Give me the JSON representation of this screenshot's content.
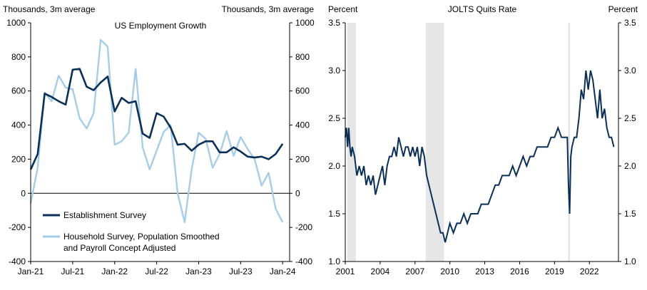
{
  "chart_data": [
    {
      "type": "line",
      "title": "US Employment Growth",
      "ylabel_left": "Thousands, 3m average",
      "ylabel_right": "Thousands, 3m average",
      "ylim": [
        -400,
        1000
      ],
      "yticks": [
        -400,
        -200,
        0,
        200,
        400,
        600,
        800,
        1000
      ],
      "yticklabels": [
        "-400",
        "-200",
        "0",
        "200",
        "400",
        "600",
        "800",
        "1000"
      ],
      "xlim": [
        0,
        37
      ],
      "xticks": [
        0,
        6,
        12,
        18,
        24,
        30,
        36
      ],
      "xticklabels": [
        "Jan-21",
        "Jul-21",
        "Jan-22",
        "Jul-22",
        "Jan-23",
        "Jul-23",
        "Jan-24"
      ],
      "zero_line": true,
      "legend_position": "bottom-left",
      "series": [
        {
          "name": "Establishment Survey",
          "color": "#0b2f57",
          "values": [
            140,
            230,
            585,
            565,
            540,
            520,
            725,
            730,
            625,
            605,
            650,
            685,
            480,
            560,
            530,
            540,
            350,
            325,
            470,
            450,
            385,
            285,
            290,
            250,
            285,
            305,
            305,
            240,
            240,
            270,
            245,
            215,
            210,
            215,
            200,
            230,
            290
          ]
        },
        {
          "name": "Household Survey, Population Smoothed\nand Payroll Concept Adjusted",
          "name_lines": [
            "Household Survey, Population Smoothed",
            "and Payroll Concept Adjusted"
          ],
          "color": "#a6cde8",
          "values": [
            -60,
            150,
            590,
            540,
            690,
            620,
            610,
            440,
            380,
            470,
            900,
            860,
            285,
            305,
            355,
            730,
            270,
            140,
            250,
            360,
            400,
            0,
            -170,
            140,
            355,
            320,
            150,
            230,
            365,
            220,
            330,
            260,
            200,
            45,
            120,
            -90,
            -170
          ]
        }
      ]
    },
    {
      "type": "line",
      "title": "JOLTS Quits Rate",
      "ylabel_left": "Percent",
      "ylabel_right": "Percent",
      "ylim": [
        1.0,
        3.5
      ],
      "yticks": [
        1.0,
        1.5,
        2.0,
        2.5,
        3.0,
        3.5
      ],
      "yticklabels": [
        "1.0",
        "1.5",
        "2.0",
        "2.5",
        "3.0",
        "3.5"
      ],
      "xlim": [
        2001.0,
        2024.5
      ],
      "xticks": [
        2001,
        2004,
        2007,
        2010,
        2013,
        2016,
        2019,
        2022
      ],
      "xticklabels": [
        "2001",
        "2004",
        "2007",
        "2010",
        "2013",
        "2016",
        "2019",
        "2022"
      ],
      "recessions": [
        [
          2001.17,
          2001.92
        ],
        [
          2007.92,
          2009.5
        ],
        [
          2020.17,
          2020.33
        ]
      ],
      "series": [
        {
          "name": "Quits Rate",
          "color": "#0b2f57",
          "x": [
            2001.0,
            2001.1,
            2001.2,
            2001.3,
            2001.4,
            2001.5,
            2001.6,
            2001.8,
            2002.0,
            2002.2,
            2002.4,
            2002.6,
            2002.8,
            2003.0,
            2003.2,
            2003.4,
            2003.6,
            2003.8,
            2004.0,
            2004.2,
            2004.4,
            2004.6,
            2004.8,
            2005.0,
            2005.2,
            2005.4,
            2005.6,
            2005.8,
            2006.0,
            2006.2,
            2006.4,
            2006.6,
            2006.8,
            2007.0,
            2007.2,
            2007.4,
            2007.6,
            2007.8,
            2008.0,
            2008.2,
            2008.4,
            2008.6,
            2008.8,
            2009.0,
            2009.2,
            2009.4,
            2009.6,
            2009.8,
            2010.0,
            2010.3,
            2010.6,
            2010.9,
            2011.2,
            2011.5,
            2011.8,
            2012.1,
            2012.4,
            2012.7,
            2013.0,
            2013.3,
            2013.6,
            2013.9,
            2014.2,
            2014.5,
            2014.8,
            2015.1,
            2015.4,
            2015.7,
            2016.0,
            2016.3,
            2016.6,
            2016.9,
            2017.2,
            2017.5,
            2017.8,
            2018.1,
            2018.4,
            2018.7,
            2019.0,
            2019.3,
            2019.6,
            2019.9,
            2020.1,
            2020.2,
            2020.3,
            2020.4,
            2020.5,
            2020.7,
            2020.9,
            2021.1,
            2021.3,
            2021.5,
            2021.7,
            2021.9,
            2022.1,
            2022.3,
            2022.5,
            2022.7,
            2022.9,
            2023.1,
            2023.3,
            2023.5,
            2023.7,
            2023.9,
            2024.1
          ],
          "values": [
            2.3,
            2.4,
            2.2,
            2.4,
            2.2,
            2.1,
            2.2,
            2.1,
            1.9,
            2.0,
            1.9,
            2.0,
            1.8,
            1.9,
            1.8,
            1.9,
            1.7,
            1.8,
            1.9,
            2.0,
            1.8,
            2.0,
            2.1,
            2.1,
            2.2,
            2.1,
            2.3,
            2.2,
            2.1,
            2.2,
            2.2,
            2.1,
            2.2,
            2.1,
            2.2,
            2.0,
            2.2,
            2.1,
            1.9,
            1.8,
            1.7,
            1.6,
            1.5,
            1.4,
            1.3,
            1.3,
            1.2,
            1.3,
            1.4,
            1.3,
            1.4,
            1.4,
            1.5,
            1.4,
            1.5,
            1.5,
            1.5,
            1.6,
            1.6,
            1.6,
            1.7,
            1.8,
            1.8,
            1.9,
            1.9,
            1.9,
            2.0,
            1.9,
            2.0,
            2.1,
            2.0,
            2.1,
            2.1,
            2.2,
            2.2,
            2.2,
            2.2,
            2.3,
            2.3,
            2.4,
            2.3,
            2.3,
            2.3,
            1.8,
            1.5,
            2.1,
            2.2,
            2.3,
            2.3,
            2.5,
            2.8,
            2.7,
            3.0,
            2.8,
            3.0,
            2.9,
            2.7,
            2.5,
            2.8,
            2.5,
            2.6,
            2.4,
            2.3,
            2.3,
            2.2
          ]
        }
      ]
    }
  ]
}
